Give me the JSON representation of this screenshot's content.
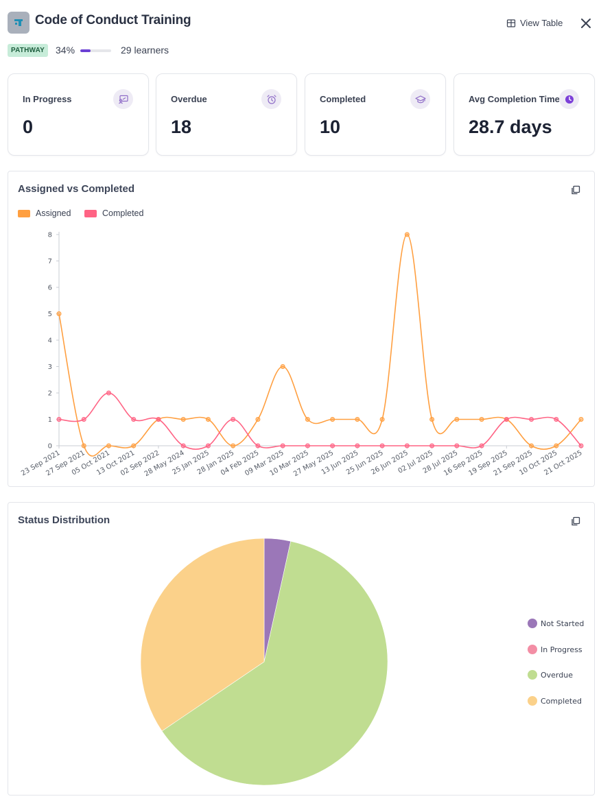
{
  "header": {
    "title": "Code of Conduct Training",
    "badge": "PATHWAY",
    "progress_label": "34%",
    "progress_value": 0.34,
    "learners": "29 learners",
    "view_table_label": "View Table"
  },
  "stats": [
    {
      "label": "In Progress",
      "value": "0",
      "icon": "presentation-icon"
    },
    {
      "label": "Overdue",
      "value": "18",
      "icon": "alarm-clock-icon"
    },
    {
      "label": "Completed",
      "value": "10",
      "icon": "graduation-cap-icon"
    },
    {
      "label": "Avg Completion Time",
      "value": "28.7 days",
      "icon": "clock-icon"
    }
  ],
  "colors": {
    "accent": "#6b3fd4",
    "assigned": "#ff9f40",
    "completed": "#ff6384",
    "not_started": "#9b77b8",
    "in_progress": "#f38ea5",
    "overdue": "#c0dd91",
    "completed_slice": "#fbd18a"
  },
  "chart_data": [
    {
      "type": "line",
      "title": "Assigned vs Completed",
      "xlabel": "",
      "ylabel": "",
      "ylim": [
        0,
        8
      ],
      "yticks": [
        "0",
        "1",
        "2",
        "3",
        "4",
        "5",
        "6",
        "7",
        "8"
      ],
      "legend_position": "top-left",
      "grid": false,
      "categories": [
        "23 Sep 2021",
        "27 Sep 2021",
        "05 Oct 2021",
        "13 Oct 2021",
        "02 Sep 2022",
        "28 May 2024",
        "25 Jan 2025",
        "28 Jan 2025",
        "04 Feb 2025",
        "09 Mar 2025",
        "10 Mar 2025",
        "27 May 2025",
        "13 Jun 2025",
        "25 Jun 2025",
        "26 Jun 2025",
        "02 Jul 2025",
        "28 Jul 2025",
        "16 Sep 2025",
        "19 Sep 2025",
        "21 Sep 2025",
        "10 Oct 2025",
        "21 Oct 2025"
      ],
      "series": [
        {
          "name": "Assigned",
          "color": "#ff9f40",
          "values": [
            5,
            0,
            0,
            0,
            1,
            1,
            1,
            0,
            1,
            3,
            1,
            1,
            1,
            1,
            8,
            1,
            1,
            1,
            1,
            0,
            0,
            1
          ]
        },
        {
          "name": "Completed",
          "color": "#ff6384",
          "values": [
            1,
            1,
            2,
            1,
            1,
            0,
            0,
            1,
            0,
            0,
            0,
            0,
            0,
            0,
            0,
            0,
            0,
            0,
            1,
            1,
            1,
            0
          ]
        }
      ]
    },
    {
      "type": "pie",
      "title": "Status Distribution",
      "legend_position": "right",
      "labels": [
        "Not Started",
        "In Progress",
        "Overdue",
        "Completed"
      ],
      "values": [
        1,
        0,
        18,
        10
      ],
      "colors": [
        "#9b77b8",
        "#f38ea5",
        "#c0dd91",
        "#fbd18a"
      ]
    }
  ]
}
